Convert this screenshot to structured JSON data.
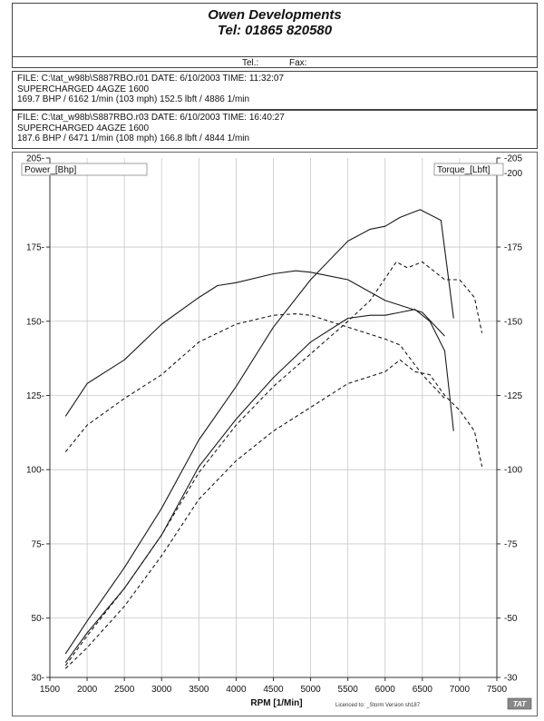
{
  "header": {
    "company": "Owen Developments",
    "phone": "Tel: 01865 820580",
    "tel_label": "Tel.:",
    "fax_label": "Fax:"
  },
  "runs": [
    {
      "file_line": "FILE: C:\\tat_w98b\\S887RBO.r01  DATE: 6/10/2003  TIME: 11:32:07",
      "desc": "SUPERCHARGED 4AGZE 1600",
      "result": "169.7 BHP / 6162 1/min (103 mph)       152.5 lbft / 4886 1/min"
    },
    {
      "file_line": "FILE: C:\\tat_w98b\\S887RBO.r03  DATE: 6/10/2003  TIME: 16:40:27",
      "desc": "SUPERCHARGED 4AGZE 1600",
      "result": "187.6 BHP / 6471 1/min (108 mph)       166.8 lbft / 4844 1/min"
    }
  ],
  "footer": {
    "licence": "Licenced to: _Storm   Version sh187",
    "logo": "TAT"
  },
  "chart_data": {
    "type": "line",
    "xlabel": "RPM  [1/Min]",
    "ylabel_left": "Power_[Bhp]",
    "ylabel_right": "Torque_[Lbft]",
    "xlim": [
      1500,
      7500
    ],
    "ylim_left": [
      30,
      205
    ],
    "ylim_right": [
      -30,
      -205
    ],
    "x_ticks": [
      1500,
      2000,
      2500,
      3000,
      3500,
      4000,
      4500,
      5000,
      5500,
      6000,
      6500,
      7000,
      7500
    ],
    "y_ticks_left": [
      30,
      50,
      75,
      100,
      125,
      150,
      175,
      205
    ],
    "y_ticks_right": [
      -30,
      -50,
      -75,
      -100,
      -125,
      -150,
      -175,
      -200,
      -205
    ],
    "grid": true,
    "series": [
      {
        "axis": "left",
        "style": "solid",
        "x": [
          1710,
          2000,
          2500,
          3000,
          3500,
          3750,
          4000,
          4500,
          4800,
          5000,
          5500,
          6000,
          6500,
          6800
        ],
        "values": [
          118,
          129,
          137,
          149,
          158,
          162,
          163,
          166,
          167,
          166.5,
          164,
          157,
          153,
          145
        ]
      },
      {
        "axis": "left",
        "style": "dashed",
        "x": [
          1710,
          2000,
          2500,
          3000,
          3500,
          4000,
          4500,
          4800,
          5000,
          5500,
          6000,
          6200,
          6500,
          6800
        ],
        "values": [
          106,
          115,
          124,
          132,
          143,
          149,
          152,
          152.5,
          152,
          148,
          144,
          142,
          132,
          124
        ]
      },
      {
        "axis": "left",
        "style": "solid",
        "x": [
          1710,
          2000,
          2500,
          3000,
          3500,
          4000,
          4500,
          5000,
          5500,
          5800,
          6000,
          6200,
          6470,
          6750,
          6920
        ],
        "values": [
          38,
          49,
          67,
          87,
          110,
          128,
          148,
          164,
          177,
          181,
          182,
          185,
          187.6,
          184,
          151
        ]
      },
      {
        "axis": "left",
        "style": "dashed",
        "x": [
          1710,
          2000,
          2500,
          3000,
          3500,
          4000,
          4500,
          5000,
          5500,
          5800,
          6150,
          6300,
          6500,
          6800,
          7000,
          7200,
          7300
        ],
        "values": [
          34,
          44,
          60,
          78,
          99,
          115,
          128,
          139,
          150,
          157,
          170,
          168,
          170,
          164,
          164,
          158,
          146
        ]
      },
      {
        "axis": "right",
        "style": "solid",
        "x": [
          1710,
          2000,
          2500,
          3000,
          3500,
          4000,
          4500,
          5000,
          5500,
          5800,
          6000,
          6200,
          6400,
          6600,
          6800,
          6920
        ],
        "values": [
          -35,
          -45,
          -60,
          -78,
          -101,
          -117,
          -131,
          -143,
          -151,
          -152,
          -152,
          -153,
          -154,
          -150,
          -140,
          -113
        ]
      },
      {
        "axis": "right",
        "style": "dashed",
        "x": [
          1710,
          2000,
          2500,
          3000,
          3500,
          4000,
          4500,
          5000,
          5500,
          6000,
          6200,
          6400,
          6600,
          6800,
          7000,
          7200,
          7300
        ],
        "values": [
          -33,
          -40,
          -54,
          -71,
          -90,
          -103,
          -113,
          -121,
          -129,
          -133,
          -137,
          -133,
          -132,
          -125,
          -120,
          -113,
          -101
        ]
      }
    ]
  }
}
